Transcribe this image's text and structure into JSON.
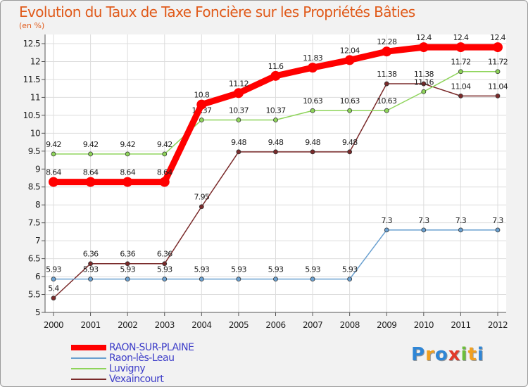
{
  "colors": {
    "title": "#e05a1a",
    "text": "#222222",
    "legend_text": "#3c3cc8",
    "grid": "#dddddd",
    "axis": "#555555"
  },
  "logo": {
    "text": "Proxiti",
    "letters": [
      {
        "ch": "P",
        "color": "#2f86d6"
      },
      {
        "ch": "r",
        "color": "#f0a020"
      },
      {
        "ch": "o",
        "color": "#2f86d6"
      },
      {
        "ch": "x",
        "color": "#e23a2a"
      },
      {
        "ch": "i",
        "color": "#6cbf3a"
      },
      {
        "ch": "t",
        "color": "#f0a020"
      },
      {
        "ch": "i",
        "color": "#2f86d6"
      }
    ]
  },
  "chart_data": {
    "type": "line",
    "title": "Evolution du Taux de Taxe Foncière sur les Propriétés Bâties",
    "ylabel": "(en %)",
    "xlabel": "",
    "ylim": [
      5,
      12.5
    ],
    "yticks": [
      "5",
      "5.5",
      "6",
      "6.5",
      "7",
      "7.5",
      "8",
      "8.5",
      "9",
      "9.5",
      "10",
      "10.5",
      "11",
      "11.5",
      "12",
      "12.5"
    ],
    "x": [
      "2000",
      "2001",
      "2002",
      "2003",
      "2004",
      "2005",
      "2006",
      "2007",
      "2008",
      "2009",
      "2010",
      "2011",
      "2012"
    ],
    "grid": true,
    "legend_position": "bottom-left",
    "series": [
      {
        "name": "Vexaincourt",
        "color": "#7a2a2a",
        "labels": [
          "5.4",
          "6.36",
          "6.36",
          "6.36",
          "7.95",
          "9.48",
          "9.48",
          "9.48",
          "9.48",
          "11.38",
          "11.38",
          "11.04",
          "11.04"
        ],
        "values": [
          5.4,
          6.36,
          6.36,
          6.36,
          7.95,
          9.48,
          9.48,
          9.48,
          9.48,
          11.38,
          11.38,
          11.04,
          11.04
        ]
      },
      {
        "name": "Luvigny",
        "color": "#8ed45a",
        "labels": [
          "9.42",
          "9.42",
          "9.42",
          "9.42",
          "10.37",
          "10.37",
          "10.37",
          "10.63",
          "10.63",
          "10.63",
          "11.16",
          "11.72",
          "11.72"
        ],
        "values": [
          9.42,
          9.42,
          9.42,
          9.42,
          10.37,
          10.37,
          10.37,
          10.63,
          10.63,
          10.63,
          11.16,
          11.72,
          11.72
        ]
      },
      {
        "name": "Raon-lès-Leau",
        "color": "#6aa0d0",
        "labels": [
          "5.93",
          "5.93",
          "5.93",
          "5.93",
          "5.93",
          "5.93",
          "5.93",
          "5.93",
          "5.93",
          "7.3",
          "7.3",
          "7.3",
          "7.3"
        ],
        "values": [
          5.93,
          5.93,
          5.93,
          5.93,
          5.93,
          5.93,
          5.93,
          5.93,
          5.93,
          7.3,
          7.3,
          7.3,
          7.3
        ]
      },
      {
        "name": "RAON-SUR-PLAINE",
        "color": "#ff0000",
        "labels": [
          "8.64",
          "8.64",
          "8.64",
          "8.64",
          "10.8",
          "11.12",
          "11.6",
          "11.83",
          "12.04",
          "12.28",
          "12.4",
          "12.4",
          "12.4"
        ],
        "values": [
          8.64,
          8.64,
          8.64,
          8.64,
          10.8,
          11.12,
          11.6,
          11.83,
          12.04,
          12.28,
          12.4,
          12.4,
          12.4
        ]
      }
    ],
    "legend": [
      "RAON-SUR-PLAINE",
      "Raon-lès-Leau",
      "Luvigny",
      "Vexaincourt"
    ]
  }
}
